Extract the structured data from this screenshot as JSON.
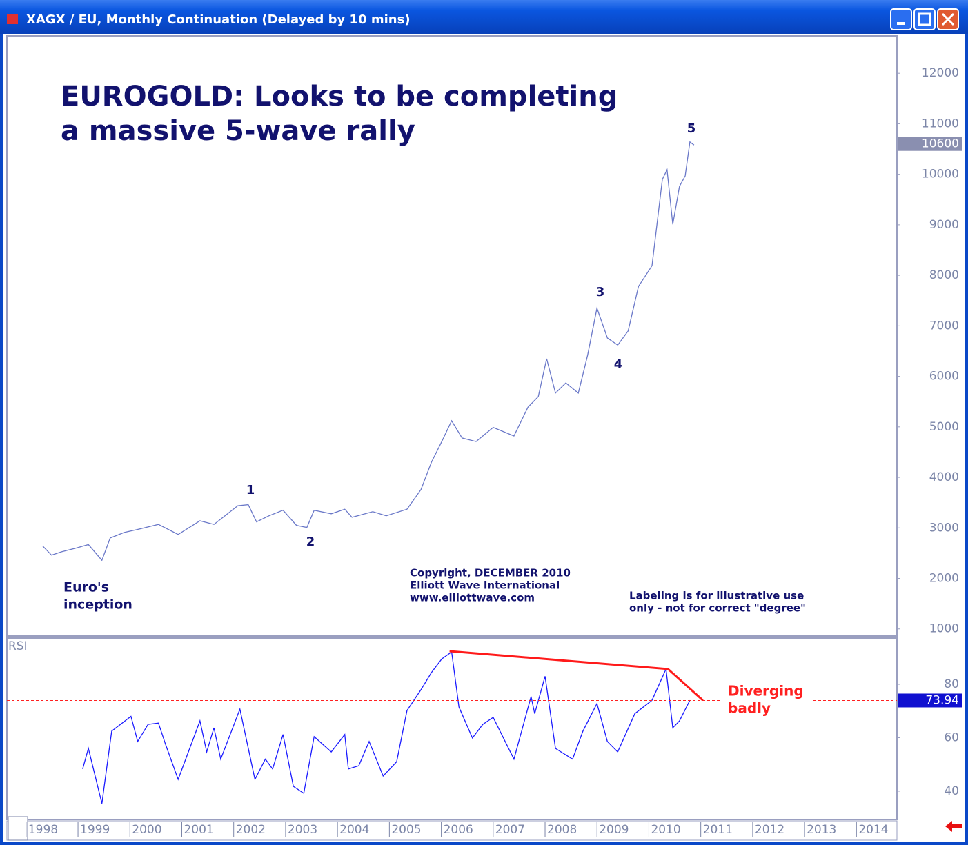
{
  "window": {
    "title": "XAGX / EU, Monthly Continuation (Delayed by 10 mins)"
  },
  "chart_data": [
    {
      "type": "line",
      "title": [
        "EUROGOLD: Looks to be completing",
        "a massive 5-wave rally"
      ],
      "series": [
        {
          "name": "XAGX / EU",
          "color": "#6a78c8",
          "x": [
            1998.32,
            1998.49,
            1998.69,
            1998.96,
            1999.2,
            1999.46,
            1999.62,
            1999.89,
            2000.15,
            2000.55,
            2000.93,
            2001.35,
            2001.62,
            2002.08,
            2002.28,
            2002.44,
            2002.68,
            2002.95,
            2003.21,
            2003.41,
            2003.55,
            2003.88,
            2004.14,
            2004.28,
            2004.68,
            2004.94,
            2005.34,
            2005.61,
            2005.81,
            2006.01,
            2006.2,
            2006.4,
            2006.67,
            2007.0,
            2007.4,
            2007.67,
            2007.87,
            2008.03,
            2008.2,
            2008.4,
            2008.64,
            2008.82,
            2009.0,
            2009.2,
            2009.4,
            2009.6,
            2009.8,
            2010.06,
            2010.26,
            2010.35,
            2010.46,
            2010.59,
            2010.7,
            2010.79,
            2010.87
          ],
          "values": [
            2640,
            2460,
            2530,
            2600,
            2670,
            2360,
            2800,
            2910,
            2970,
            3070,
            2870,
            3140,
            3070,
            3440,
            3460,
            3120,
            3240,
            3350,
            3050,
            3010,
            3350,
            3280,
            3370,
            3210,
            3320,
            3240,
            3370,
            3760,
            4300,
            4710,
            5120,
            4780,
            4710,
            4990,
            4820,
            5390,
            5600,
            6350,
            5670,
            5870,
            5670,
            6420,
            7350,
            6760,
            6620,
            6900,
            7780,
            8190,
            9900,
            10090,
            9010,
            9760,
            9970,
            10640,
            10580
          ]
        }
      ],
      "last_value": 10600,
      "xlim": [
        1997.63,
        2014.78
      ],
      "xticks": [
        1998,
        1999,
        2000,
        2001,
        2002,
        2003,
        2004,
        2005,
        2006,
        2007,
        2008,
        2009,
        2010,
        2011,
        2012,
        2013,
        2014
      ],
      "ylim": [
        860,
        12740
      ],
      "yticks": [
        1000,
        2000,
        3000,
        4000,
        5000,
        6000,
        7000,
        8000,
        9000,
        10000,
        11000,
        12000
      ],
      "wave_labels": [
        "1",
        "2",
        "3",
        "4",
        "5"
      ],
      "annotations": [
        [
          "Euro's",
          "inception"
        ],
        [
          "Copyright, DECEMBER 2010",
          "Elliott Wave International",
          "www.elliottwave.com"
        ],
        [
          "Labeling is for illustrative use",
          "only - not for correct \"degree\""
        ]
      ]
    },
    {
      "type": "line",
      "title": "RSI",
      "series": [
        {
          "name": "RSI",
          "color": "#1a1aff",
          "x": [
            1999.09,
            1999.2,
            1999.46,
            1999.65,
            2000.02,
            2000.15,
            2000.35,
            2000.55,
            2000.69,
            2000.93,
            2001.35,
            2001.48,
            2001.62,
            2001.75,
            2002.12,
            2002.41,
            2002.61,
            2002.75,
            2002.95,
            2003.15,
            2003.35,
            2003.55,
            2003.88,
            2004.14,
            2004.21,
            2004.41,
            2004.61,
            2004.88,
            2005.14,
            2005.34,
            2005.61,
            2005.81,
            2006.01,
            2006.2,
            2006.34,
            2006.6,
            2006.8,
            2007.0,
            2007.4,
            2007.73,
            2007.8,
            2008.0,
            2008.2,
            2008.53,
            2008.73,
            2009.0,
            2009.2,
            2009.4,
            2009.73,
            2010.06,
            2010.33,
            2010.46,
            2010.59,
            2010.79
          ],
          "values": [
            48.3,
            56,
            35.4,
            62.5,
            68,
            58.6,
            65,
            65.5,
            57.3,
            44.4,
            66.3,
            54.7,
            63.7,
            52,
            70.7,
            44.4,
            52,
            48.3,
            61.2,
            41.8,
            39.2,
            60.4,
            54.7,
            61.2,
            48.3,
            49.5,
            58.6,
            45.7,
            51,
            70.2,
            78,
            84.4,
            89.5,
            92.1,
            71.5,
            59.9,
            65,
            67.6,
            52,
            75.4,
            69,
            83,
            56,
            52,
            62.5,
            72.8,
            58.6,
            54.7,
            69,
            74,
            85.7,
            63.7,
            66.3,
            74
          ]
        }
      ],
      "trendline": {
        "color": "#ff1a1a",
        "x": [
          2006.16,
          2010.37,
          2011.04
        ],
        "values": [
          92.4,
          85.7,
          74
        ]
      },
      "last_value": 73.94,
      "xlim": [
        1997.63,
        2014.78
      ],
      "ylim": [
        29.4,
        97.3
      ],
      "yticks": [
        40,
        60,
        80
      ],
      "annotations": [
        [
          "Diverging",
          "badly"
        ]
      ]
    }
  ]
}
